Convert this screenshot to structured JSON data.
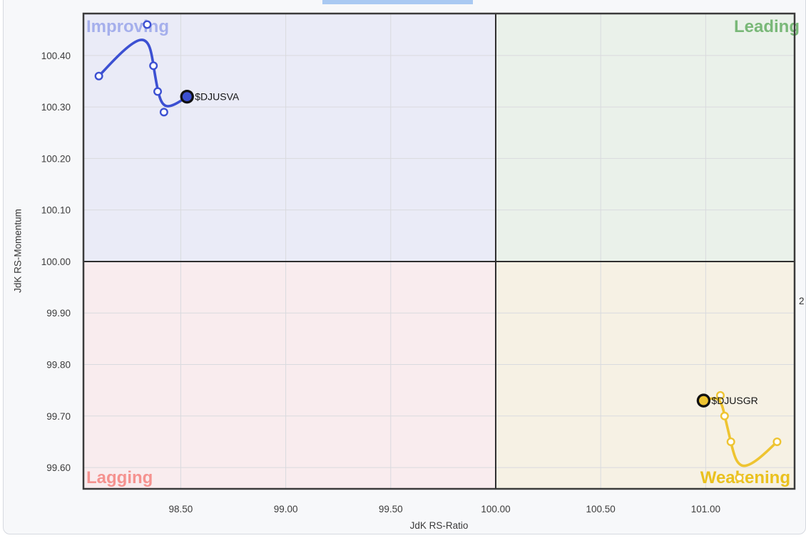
{
  "panel": {
    "background": "#f7f8fa",
    "border_color": "#d6d9e0"
  },
  "decor": {
    "top_highlight_bar_color": "#a9c9f2",
    "right_edge_clipped_text": "2"
  },
  "chart_data": {
    "type": "scatter",
    "subtype": "relative-rotation-graph",
    "title": "",
    "xlabel": "JdK RS-Ratio",
    "ylabel": "JdK RS-Momentum",
    "xlim": [
      98.04,
      101.42
    ],
    "ylim": [
      99.56,
      100.48
    ],
    "x_ticks": [
      98.5,
      99.0,
      99.5,
      100.0,
      100.5,
      101.0
    ],
    "y_ticks": [
      99.6,
      99.7,
      99.8,
      99.9,
      100.0,
      100.1,
      100.2,
      100.3,
      100.4
    ],
    "tick_decimals": 2,
    "grid": true,
    "grid_color": "#d9dade",
    "center_cross": [
      100.0,
      100.0
    ],
    "center_cross_color": "#2e2e2e",
    "border_color": "#3b3b3b",
    "quadrants": {
      "top_left": {
        "label": "Improving",
        "bg": "#eaebf7",
        "label_color": "#a5afec"
      },
      "top_right": {
        "label": "Leading",
        "bg": "#eaf1ea",
        "label_color": "#79b878"
      },
      "bottom_left": {
        "label": "Lagging",
        "bg": "#f9ecee",
        "label_color": "#f5928f"
      },
      "bottom_right": {
        "label": "Weakening",
        "bg": "#f6f1e4",
        "label_color": "#eac11e"
      }
    },
    "series": [
      {
        "name": "$DJUSVA",
        "color": "#3c50d2",
        "points": [
          [
            98.11,
            100.36
          ],
          [
            98.34,
            100.46
          ],
          [
            98.37,
            100.38
          ],
          [
            98.39,
            100.33
          ],
          [
            98.42,
            100.29
          ],
          [
            98.53,
            100.32
          ]
        ],
        "head": [
          98.53,
          100.32
        ]
      },
      {
        "name": "$DJUSGR",
        "color": "#eec431",
        "points": [
          [
            101.34,
            99.65
          ],
          [
            101.16,
            99.58
          ],
          [
            101.12,
            99.65
          ],
          [
            101.09,
            99.7
          ],
          [
            101.07,
            99.74
          ],
          [
            100.99,
            99.73
          ]
        ],
        "head": [
          100.99,
          99.73
        ]
      }
    ]
  }
}
